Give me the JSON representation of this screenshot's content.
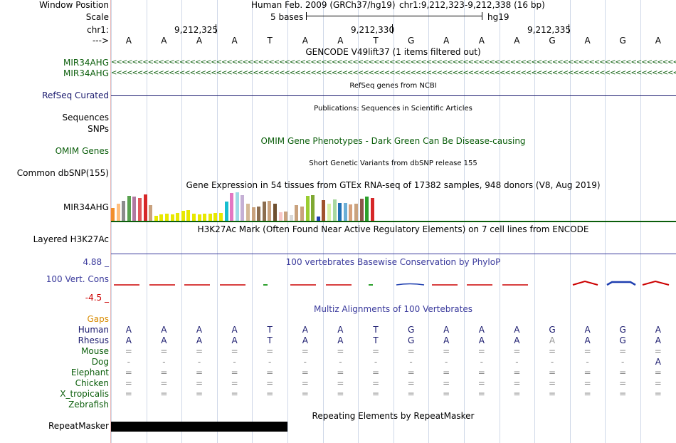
{
  "header": {
    "window_label": "Window Position",
    "assembly": "Human Feb. 2009 (GRCh37/hg19)",
    "position": "chr1:9,212,323-9,212,338 (16 bp)",
    "scale_label": "Scale",
    "scale_text": "5 bases",
    "scale_db": "hg19",
    "chrom_label": "chr1:",
    "arrow_label": "--->",
    "ruler_positions": [
      "9,212,325",
      "9,212,330",
      "9,212,335"
    ]
  },
  "bases": [
    "A",
    "A",
    "A",
    "A",
    "T",
    "A",
    "A",
    "T",
    "G",
    "A",
    "A",
    "A",
    "G",
    "A",
    "G",
    "A"
  ],
  "tracks": {
    "gencode_title": "GENCODE V49lift37 (1 items filtered out)",
    "gencode_items": [
      "MIR34AHG",
      "MIR34AHG"
    ],
    "gencode_arrows": "<<<<<<<<<<<<<<<<<<<<<<<<<<<<<<<<<<<<<<<<<<<<<<<<<<<<<<<<<<<<<<<<<<<<<<<<<<<<<<<<<<<<<<<<<<<<<<<<<<<<<<<<<<<<<<<<<<<<<<<<<<<<<<<<<<<<<<<<<<<<<<<<<<<<<<<<",
    "refseq_label": "RefSeq Curated",
    "refseq_title": "RefSeq genes from NCBI",
    "pubs_title": "Publications: Sequences in Scientific Articles",
    "sequences_label": "Sequences",
    "snps_label": "SNPs",
    "omim_title": "OMIM Gene Phenotypes - Dark Green Can Be Disease-causing",
    "omim_label": "OMIM Genes",
    "dbsnp_title": "Short Genetic Variants from dbSNP release 155",
    "dbsnp_label": "Common dbSNP(155)",
    "gtex_title": "Gene Expression in 54 tissues from GTEx RNA-seq of 17382 samples, 948 donors (V8, Aug 2019)",
    "gtex_label": "MIR34AHG",
    "h3k27ac_title": "H3K27Ac Mark (Often Found Near Active Regulatory Elements) on 7 cell lines from ENCODE",
    "h3k27ac_label": "Layered H3K27Ac",
    "phylop_max": "4.88 _",
    "phylop_min": "-4.5 _",
    "phylop_title": "100 vertebrates Basewise Conservation by PhyloP",
    "phylop_label": "100 Vert. Cons",
    "multiz_title": "Multiz Alignments of 100 Vertebrates",
    "gaps_label": "Gaps",
    "repeat_title": "Repeating Elements by RepeatMasker",
    "repeat_label": "RepeatMasker"
  },
  "gtex_bars": [
    {
      "v": 0.45,
      "c": "#f28e2b"
    },
    {
      "v": 0.6,
      "c": "#ffbe7d"
    },
    {
      "v": 0.7,
      "c": "#8c8c8c"
    },
    {
      "v": 0.88,
      "c": "#59a14f"
    },
    {
      "v": 0.85,
      "c": "#b07aa1"
    },
    {
      "v": 0.8,
      "c": "#e15759"
    },
    {
      "v": 0.92,
      "c": "#d62728"
    },
    {
      "v": 0.55,
      "c": "#c9a27e"
    },
    {
      "v": 0.18,
      "c": "#e8e800"
    },
    {
      "v": 0.22,
      "c": "#e8e800"
    },
    {
      "v": 0.25,
      "c": "#e8e800"
    },
    {
      "v": 0.22,
      "c": "#e8e800"
    },
    {
      "v": 0.28,
      "c": "#e8e800"
    },
    {
      "v": 0.35,
      "c": "#e8e800"
    },
    {
      "v": 0.38,
      "c": "#e8e800"
    },
    {
      "v": 0.25,
      "c": "#e8e800"
    },
    {
      "v": 0.22,
      "c": "#e8e800"
    },
    {
      "v": 0.25,
      "c": "#e8e800"
    },
    {
      "v": 0.25,
      "c": "#e8e800"
    },
    {
      "v": 0.28,
      "c": "#e8e800"
    },
    {
      "v": 0.28,
      "c": "#e8e800"
    },
    {
      "v": 0.68,
      "c": "#17becf"
    },
    {
      "v": 0.97,
      "c": "#e377c2"
    },
    {
      "v": 1.0,
      "c": "#9edae5"
    },
    {
      "v": 0.9,
      "c": "#c5b0d5"
    },
    {
      "v": 0.6,
      "c": "#d4b996"
    },
    {
      "v": 0.48,
      "c": "#c9a27e"
    },
    {
      "v": 0.5,
      "c": "#8c6d4f"
    },
    {
      "v": 0.68,
      "c": "#8c6d4f"
    },
    {
      "v": 0.7,
      "c": "#c9a27e"
    },
    {
      "v": 0.6,
      "c": "#6f5030"
    },
    {
      "v": 0.3,
      "c": "#f7c6c7"
    },
    {
      "v": 0.32,
      "c": "#c9a27e"
    },
    {
      "v": 0.2,
      "c": "#d9d9d9"
    },
    {
      "v": 0.55,
      "c": "#c9a27e"
    },
    {
      "v": 0.5,
      "c": "#c9a27e"
    },
    {
      "v": 0.88,
      "c": "#9acd32"
    },
    {
      "v": 0.9,
      "c": "#7fa832"
    },
    {
      "v": 0.15,
      "c": "#1f3fb0"
    },
    {
      "v": 0.72,
      "c": "#a0522d"
    },
    {
      "v": 0.6,
      "c": "#d9f2a6"
    },
    {
      "v": 0.75,
      "c": "#a8d8a0"
    },
    {
      "v": 0.62,
      "c": "#2171b5"
    },
    {
      "v": 0.62,
      "c": "#6baed6"
    },
    {
      "v": 0.58,
      "c": "#d6a27e"
    },
    {
      "v": 0.6,
      "c": "#c9a27e"
    },
    {
      "v": 0.78,
      "c": "#8c564b"
    },
    {
      "v": 0.85,
      "c": "#2ca02c"
    },
    {
      "v": 0.8,
      "c": "#d62728"
    }
  ],
  "multiz": [
    {
      "species": "Gaps",
      "row": []
    },
    {
      "species": "Human",
      "row": [
        "A",
        "A",
        "A",
        "A",
        "T",
        "A",
        "A",
        "T",
        "G",
        "A",
        "A",
        "A",
        "G",
        "A",
        "G",
        "A"
      ]
    },
    {
      "species": "Rhesus",
      "row": [
        "A",
        "A",
        "A",
        "A",
        "T",
        "A",
        "A",
        "T",
        "G",
        "A",
        "A",
        "A",
        "A",
        "A",
        "G",
        "A"
      ]
    },
    {
      "species": "Mouse",
      "row": [
        "=",
        "=",
        "=",
        "=",
        "=",
        "=",
        "=",
        "=",
        "=",
        "=",
        "=",
        "=",
        "=",
        "=",
        "=",
        "="
      ]
    },
    {
      "species": "Dog",
      "row": [
        "-",
        "-",
        "-",
        "-",
        "-",
        "-",
        "-",
        "-",
        "-",
        "-",
        "-",
        "-",
        "-",
        "-",
        "-",
        "A"
      ]
    },
    {
      "species": "Elephant",
      "row": [
        "=",
        "=",
        "=",
        "=",
        "=",
        "=",
        "=",
        "=",
        "=",
        "=",
        "=",
        "=",
        "=",
        "=",
        "=",
        "="
      ]
    },
    {
      "species": "Chicken",
      "row": [
        "=",
        "=",
        "=",
        "=",
        "=",
        "=",
        "=",
        "=",
        "=",
        "=",
        "=",
        "=",
        "=",
        "=",
        "=",
        "="
      ]
    },
    {
      "species": "X_tropicalis",
      "row": [
        "=",
        "=",
        "=",
        "=",
        "=",
        "=",
        "=",
        "=",
        "=",
        "=",
        "=",
        "=",
        "=",
        "=",
        "=",
        "="
      ]
    },
    {
      "species": "Zebrafish",
      "row": []
    }
  ],
  "colors": {
    "gene_green": "#0b5e0b",
    "refseq_navy": "#1a1a6e",
    "phylop_blue": "#3a3a9c",
    "phylop_red": "#cc0000",
    "gaps_orange": "#d88b00"
  }
}
